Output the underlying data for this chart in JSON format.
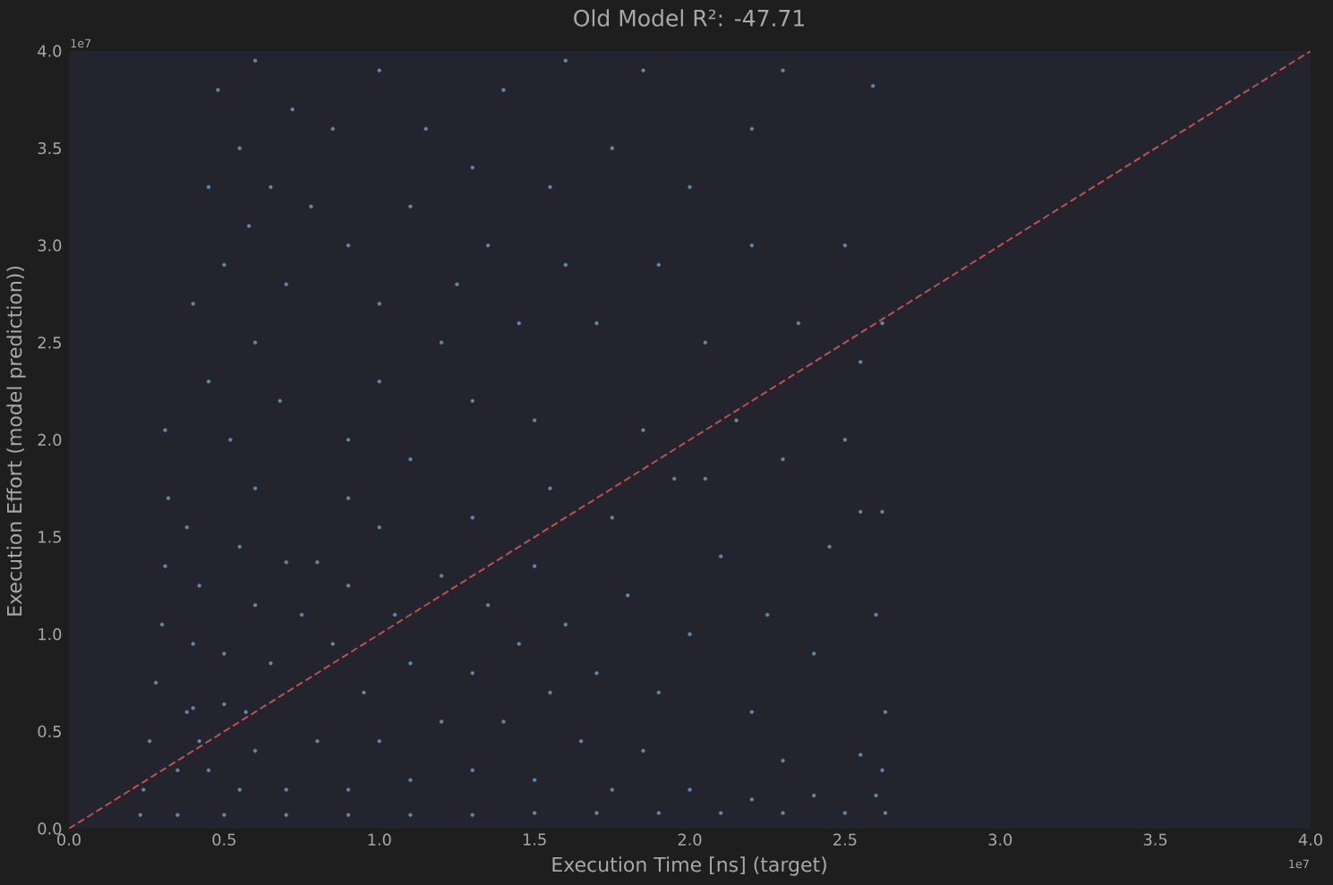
{
  "chart_data": {
    "type": "scatter",
    "title": "Old Model R²: -47.71",
    "xlabel": "Execution Time [ns] (target)",
    "ylabel": "Execution Effort (model prediction))",
    "annotations": [
      "1e7",
      "1e7"
    ],
    "xlim": [
      0,
      4
    ],
    "ylim": [
      0,
      4
    ],
    "xticks": [
      {
        "value": 0,
        "label": "0.0"
      },
      0.5,
      {
        "value": 1,
        "label": "1.0"
      },
      1.5,
      {
        "value": 2,
        "label": "2.0"
      },
      2.5,
      {
        "value": 3,
        "label": "3.0"
      },
      3.5,
      {
        "value": 4,
        "label": "4.0"
      }
    ],
    "yticks": [
      {
        "value": 0,
        "label": "0.0"
      },
      0.5,
      {
        "value": 1,
        "label": "1.0"
      },
      1.5,
      {
        "value": 2,
        "label": "2.0"
      },
      2.5,
      {
        "value": 3,
        "label": "3.0"
      },
      3.5,
      {
        "value": 4,
        "label": "4.0"
      }
    ],
    "series": [
      {
        "color": "#6088a8",
        "marker": "circle",
        "x": [
          0.23,
          0.35,
          0.5,
          0.7,
          0.9,
          1.1,
          1.3,
          1.5,
          1.7,
          1.9,
          2.1,
          2.3,
          2.5,
          2.63,
          2.2,
          2.4,
          2.6,
          2.3,
          2.55,
          2.62,
          0.24,
          0.26,
          0.28,
          0.3,
          0.31,
          0.32,
          0.31,
          0.35,
          0.38,
          0.4,
          0.42,
          0.38,
          0.45,
          0.55,
          0.6,
          0.42,
          0.4,
          0.5,
          0.57,
          0.7,
          0.8,
          0.9,
          0.95,
          1.0,
          1.1,
          1.1,
          1.2,
          1.3,
          1.3,
          1.4,
          1.5,
          1.55,
          1.65,
          1.75,
          1.85,
          2.0,
          0.85,
          1.45,
          0.5,
          0.6,
          0.65,
          0.7,
          0.8,
          0.75,
          0.9,
          1.0,
          1.05,
          1.2,
          1.3,
          1.35,
          1.5,
          1.6,
          0.55,
          0.6,
          0.9,
          1.7,
          1.8,
          1.75,
          1.9,
          2.0,
          2.05,
          1.95,
          2.1,
          2.2,
          2.25,
          2.3,
          2.4,
          2.45,
          2.55,
          2.62,
          2.6,
          2.63,
          2.5,
          1.85,
          2.15,
          0.45,
          0.52,
          0.6,
          0.68,
          0.4,
          0.5,
          0.58,
          0.7,
          0.45,
          0.55,
          0.65,
          0.48,
          0.6,
          0.72,
          0.78,
          0.9,
          1.0,
          1.1,
          1.2,
          1.25,
          1.3,
          1.35,
          1.45,
          1.5,
          0.9,
          1.0,
          1.1,
          0.85,
          1.0,
          1.15,
          1.3,
          1.4,
          1.55,
          1.6,
          1.6,
          1.55,
          1.75,
          1.85,
          1.7,
          1.9,
          2.0,
          2.05,
          2.2,
          2.3,
          2.35,
          2.5,
          2.55,
          2.62,
          2.59,
          2.2
        ],
        "values": [
          0.07,
          0.07,
          0.07,
          0.07,
          0.07,
          0.07,
          0.07,
          0.08,
          0.08,
          0.08,
          0.08,
          0.08,
          0.08,
          0.08,
          0.15,
          0.17,
          0.17,
          0.35,
          0.38,
          0.3,
          0.2,
          0.45,
          0.75,
          1.05,
          1.35,
          1.7,
          2.05,
          0.3,
          0.6,
          0.95,
          1.25,
          1.55,
          0.3,
          0.2,
          0.4,
          0.45,
          0.62,
          0.64,
          0.6,
          0.2,
          0.45,
          0.2,
          0.7,
          0.45,
          0.25,
          0.85,
          0.55,
          0.3,
          0.8,
          0.55,
          0.25,
          0.7,
          0.45,
          0.2,
          0.4,
          0.2,
          0.95,
          0.95,
          0.9,
          1.15,
          0.85,
          1.37,
          1.37,
          1.1,
          1.25,
          1.55,
          1.1,
          1.3,
          1.6,
          1.15,
          1.35,
          1.05,
          1.45,
          1.75,
          1.7,
          0.8,
          1.2,
          1.6,
          0.7,
          1.0,
          1.8,
          1.8,
          1.4,
          0.6,
          1.1,
          1.9,
          0.9,
          1.45,
          1.63,
          1.63,
          1.1,
          0.6,
          2.0,
          2.05,
          2.1,
          2.3,
          2.0,
          2.5,
          2.2,
          2.7,
          2.9,
          3.1,
          2.8,
          3.3,
          3.5,
          3.3,
          3.8,
          3.95,
          3.7,
          3.2,
          2.0,
          2.3,
          1.9,
          2.5,
          2.8,
          2.2,
          3.0,
          2.6,
          2.1,
          3.0,
          2.7,
          3.2,
          3.6,
          3.9,
          3.6,
          3.4,
          3.8,
          3.3,
          3.95,
          2.9,
          1.75,
          3.5,
          3.9,
          2.6,
          2.9,
          3.3,
          2.5,
          3.0,
          3.9,
          2.6,
          3.0,
          2.4,
          2.6,
          3.82,
          3.6
        ]
      },
      {
        "type": "line",
        "color": "#c0504d",
        "line_style": "dashed",
        "x": [
          0,
          4
        ],
        "values": [
          0,
          4
        ]
      }
    ]
  }
}
